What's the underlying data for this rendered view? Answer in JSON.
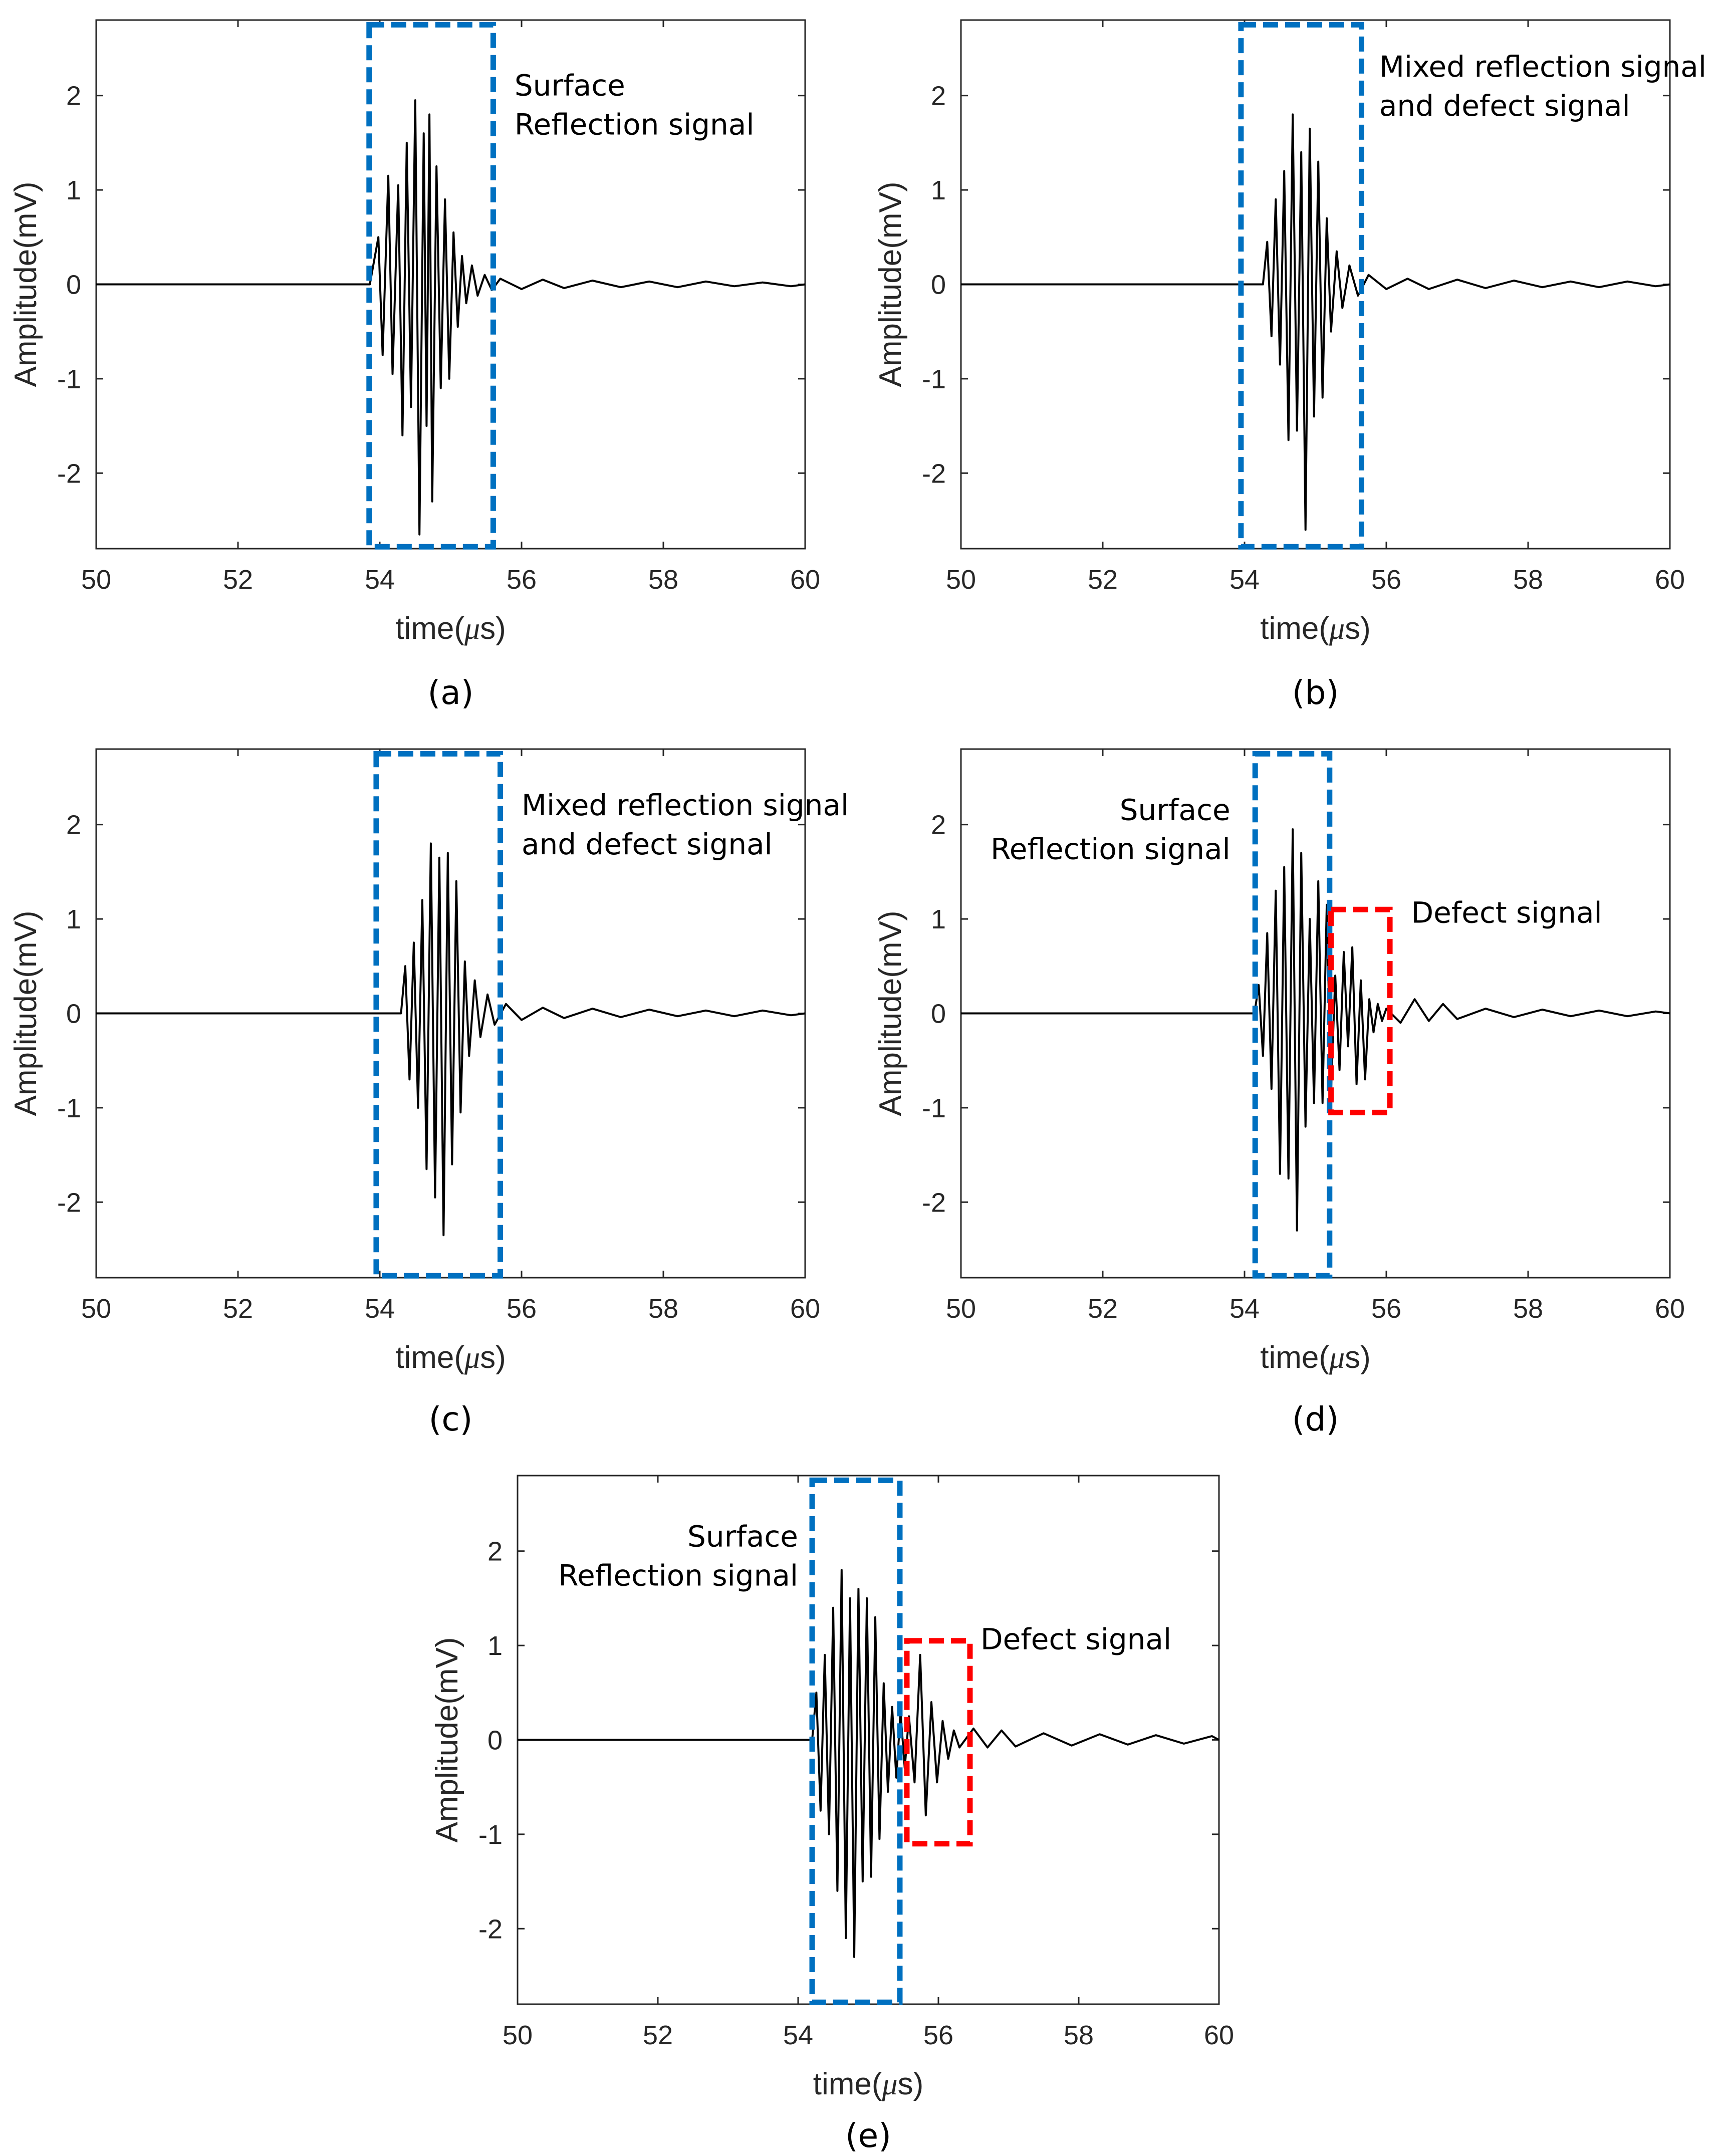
{
  "chart_data": [
    {
      "type": "line",
      "panel_label": "(a)",
      "xlabel_prefix": "time(",
      "xlabel_mu": "μ",
      "xlabel_suffix": "s)",
      "ylabel": "Amplitude(mV)",
      "xlim": [
        50,
        60
      ],
      "ylim": [
        -2.8,
        2.8
      ],
      "xticks": [
        "50",
        "52",
        "54",
        "56",
        "58",
        "60"
      ],
      "yticks": [
        "-2",
        "-1",
        "0",
        "1",
        "2"
      ],
      "series": [
        {
          "name": "signal",
          "x": [
            50,
            53.86,
            53.98,
            54.04,
            54.12,
            54.18,
            54.26,
            54.32,
            54.38,
            54.44,
            54.5,
            54.56,
            54.62,
            54.66,
            54.7,
            54.74,
            54.8,
            54.86,
            54.92,
            54.98,
            55.04,
            55.1,
            55.16,
            55.22,
            55.3,
            55.38,
            55.48,
            55.58,
            55.7,
            56.0,
            56.3,
            56.6,
            57.0,
            57.4,
            57.8,
            58.2,
            58.6,
            59.0,
            59.4,
            59.8,
            60
          ],
          "y": [
            0,
            0,
            0.5,
            -0.75,
            1.15,
            -0.95,
            1.05,
            -1.6,
            1.5,
            -1.3,
            1.95,
            -2.65,
            1.6,
            -1.5,
            1.8,
            -2.3,
            1.25,
            -1.1,
            0.9,
            -1.0,
            0.55,
            -0.45,
            0.3,
            -0.2,
            0.2,
            -0.12,
            0.1,
            -0.06,
            0.06,
            -0.05,
            0.05,
            -0.04,
            0.04,
            -0.03,
            0.03,
            -0.03,
            0.03,
            -0.02,
            0.02,
            -0.02,
            0
          ]
        }
      ],
      "annotations": [
        {
          "color": "#0070C0",
          "x0": 53.85,
          "x1": 55.6,
          "y0": -2.78,
          "y1": 2.75,
          "lines": [
            "Surface",
            "Reflection signal"
          ],
          "text_x": 55.9,
          "text_y": 2.0,
          "anchor": "start"
        }
      ]
    },
    {
      "type": "line",
      "panel_label": "(b)",
      "xlabel_prefix": "time(",
      "xlabel_mu": "μ",
      "xlabel_suffix": "s)",
      "ylabel": "Amplitude(mV)",
      "xlim": [
        50,
        60
      ],
      "ylim": [
        -2.8,
        2.8
      ],
      "xticks": [
        "50",
        "52",
        "54",
        "56",
        "58",
        "60"
      ],
      "yticks": [
        "-2",
        "-1",
        "0",
        "1",
        "2"
      ],
      "series": [
        {
          "name": "signal",
          "x": [
            50,
            54.26,
            54.32,
            54.38,
            54.44,
            54.5,
            54.56,
            54.62,
            54.68,
            54.74,
            54.8,
            54.86,
            54.92,
            54.98,
            55.04,
            55.1,
            55.16,
            55.22,
            55.3,
            55.38,
            55.48,
            55.6,
            55.75,
            56.0,
            56.3,
            56.6,
            57.0,
            57.4,
            57.8,
            58.2,
            58.6,
            59.0,
            59.4,
            59.8,
            60
          ],
          "y": [
            0,
            0,
            0.45,
            -0.55,
            0.9,
            -0.85,
            1.2,
            -1.65,
            1.8,
            -1.55,
            1.4,
            -2.6,
            1.65,
            -1.4,
            1.3,
            -1.2,
            0.7,
            -0.5,
            0.35,
            -0.25,
            0.2,
            -0.12,
            0.1,
            -0.05,
            0.06,
            -0.05,
            0.05,
            -0.04,
            0.04,
            -0.03,
            0.03,
            -0.03,
            0.03,
            -0.02,
            0
          ]
        }
      ],
      "annotations": [
        {
          "color": "#0070C0",
          "x0": 53.95,
          "x1": 55.65,
          "y0": -2.78,
          "y1": 2.75,
          "lines": [
            "Mixed reflection signal",
            "and defect signal"
          ],
          "text_x": 55.9,
          "text_y": 2.2,
          "anchor": "start"
        }
      ]
    },
    {
      "type": "line",
      "panel_label": "(c)",
      "xlabel_prefix": "time(",
      "xlabel_mu": "μ",
      "xlabel_suffix": "s)",
      "ylabel": "Amplitude(mV)",
      "xlim": [
        50,
        60
      ],
      "ylim": [
        -2.8,
        2.8
      ],
      "xticks": [
        "50",
        "52",
        "54",
        "56",
        "58",
        "60"
      ],
      "yticks": [
        "-2",
        "-1",
        "0",
        "1",
        "2"
      ],
      "series": [
        {
          "name": "signal",
          "x": [
            50,
            54.3,
            54.36,
            54.42,
            54.48,
            54.54,
            54.6,
            54.66,
            54.72,
            54.78,
            54.84,
            54.9,
            54.96,
            55.02,
            55.08,
            55.14,
            55.2,
            55.26,
            55.34,
            55.42,
            55.52,
            55.62,
            55.78,
            56.0,
            56.3,
            56.6,
            57.0,
            57.4,
            57.8,
            58.2,
            58.6,
            59.0,
            59.4,
            59.8,
            60
          ],
          "y": [
            0,
            0,
            0.5,
            -0.7,
            0.75,
            -1.0,
            1.2,
            -1.65,
            1.8,
            -1.95,
            1.65,
            -2.35,
            1.7,
            -1.6,
            1.4,
            -1.05,
            0.55,
            -0.45,
            0.35,
            -0.25,
            0.2,
            -0.12,
            0.1,
            -0.07,
            0.06,
            -0.05,
            0.05,
            -0.04,
            0.04,
            -0.03,
            0.03,
            -0.03,
            0.03,
            -0.02,
            0
          ]
        }
      ],
      "annotations": [
        {
          "color": "#0070C0",
          "x0": 53.95,
          "x1": 55.7,
          "y0": -2.78,
          "y1": 2.75,
          "lines": [
            "Mixed reflection signal",
            "and defect signal"
          ],
          "text_x": 56.0,
          "text_y": 2.1,
          "anchor": "start"
        }
      ]
    },
    {
      "type": "line",
      "panel_label": "(d)",
      "xlabel_prefix": "time(",
      "xlabel_mu": "μ",
      "xlabel_suffix": "s)",
      "ylabel": "Amplitude(mV)",
      "xlim": [
        50,
        60
      ],
      "ylim": [
        -2.8,
        2.8
      ],
      "xticks": [
        "50",
        "52",
        "54",
        "56",
        "58",
        "60"
      ],
      "yticks": [
        "-2",
        "-1",
        "0",
        "1",
        "2"
      ],
      "series": [
        {
          "name": "signal",
          "x": [
            50,
            54.14,
            54.2,
            54.26,
            54.32,
            54.38,
            54.44,
            54.5,
            54.56,
            54.62,
            54.68,
            54.74,
            54.8,
            54.86,
            54.92,
            54.98,
            55.04,
            55.1,
            55.16,
            55.22,
            55.28,
            55.34,
            55.4,
            55.46,
            55.52,
            55.58,
            55.64,
            55.7,
            55.76,
            55.82,
            55.88,
            55.94,
            56.0,
            56.2,
            56.4,
            56.6,
            56.8,
            57.0,
            57.4,
            57.8,
            58.2,
            58.6,
            59.0,
            59.4,
            59.8,
            60
          ],
          "y": [
            0,
            0,
            0.3,
            -0.45,
            0.85,
            -0.8,
            1.3,
            -1.7,
            1.55,
            -1.75,
            1.95,
            -2.3,
            1.7,
            -1.2,
            1.0,
            -0.95,
            1.4,
            -0.95,
            1.15,
            -0.85,
            0.4,
            -0.6,
            0.65,
            -0.35,
            0.7,
            -0.75,
            0.35,
            -0.7,
            0.15,
            -0.2,
            0.1,
            -0.08,
            0.05,
            -0.1,
            0.15,
            -0.08,
            0.1,
            -0.06,
            0.05,
            -0.04,
            0.04,
            -0.03,
            0.03,
            -0.03,
            0.02,
            0
          ]
        }
      ],
      "annotations": [
        {
          "color": "#0070C0",
          "x0": 54.15,
          "x1": 55.2,
          "y0": -2.78,
          "y1": 2.75,
          "lines": [
            "Surface",
            "Reflection signal"
          ],
          "text_x": 53.8,
          "text_y": 2.05,
          "anchor": "end"
        },
        {
          "color": "#FF0000",
          "x0": 55.22,
          "x1": 56.05,
          "y0": -1.05,
          "y1": 1.1,
          "lines": [
            "Defect signal"
          ],
          "text_x": 56.35,
          "text_y": 0.96,
          "anchor": "start"
        }
      ]
    },
    {
      "type": "line",
      "panel_label": "(e)",
      "xlabel_prefix": "time(",
      "xlabel_mu": "μ",
      "xlabel_suffix": "s)",
      "ylabel": "Amplitude(mV)",
      "xlim": [
        50,
        60
      ],
      "ylim": [
        -2.8,
        2.8
      ],
      "xticks": [
        "50",
        "52",
        "54",
        "56",
        "58",
        "60"
      ],
      "yticks": [
        "-2",
        "-1",
        "0",
        "1",
        "2"
      ],
      "series": [
        {
          "name": "signal",
          "x": [
            50,
            54.2,
            54.26,
            54.32,
            54.38,
            54.44,
            54.5,
            54.56,
            54.62,
            54.68,
            54.74,
            54.8,
            54.86,
            54.92,
            54.98,
            55.04,
            55.1,
            55.16,
            55.22,
            55.28,
            55.34,
            55.4,
            55.46,
            55.52,
            55.58,
            55.66,
            55.74,
            55.82,
            55.9,
            55.98,
            56.06,
            56.14,
            56.22,
            56.3,
            56.5,
            56.7,
            56.9,
            57.1,
            57.5,
            57.9,
            58.3,
            58.7,
            59.1,
            59.5,
            59.9,
            60
          ],
          "y": [
            0,
            0,
            0.5,
            -0.75,
            0.9,
            -1.0,
            1.4,
            -1.6,
            1.8,
            -2.1,
            1.5,
            -2.3,
            1.6,
            -1.5,
            1.5,
            -1.45,
            1.3,
            -1.05,
            0.6,
            -0.55,
            0.35,
            -0.4,
            0.3,
            -0.3,
            0.25,
            -0.45,
            0.9,
            -0.8,
            0.4,
            -0.45,
            0.2,
            -0.2,
            0.1,
            -0.08,
            0.12,
            -0.08,
            0.1,
            -0.07,
            0.07,
            -0.06,
            0.06,
            -0.05,
            0.05,
            -0.04,
            0.04,
            0
          ]
        }
      ],
      "annotations": [
        {
          "color": "#0070C0",
          "x0": 54.2,
          "x1": 55.45,
          "y0": -2.78,
          "y1": 2.75,
          "lines": [
            "Surface",
            "Reflection signal"
          ],
          "text_x": 54.0,
          "text_y": 2.05,
          "anchor": "end"
        },
        {
          "color": "#FF0000",
          "x0": 55.55,
          "x1": 56.45,
          "y0": -1.1,
          "y1": 1.05,
          "lines": [
            "Defect signal"
          ],
          "text_x": 56.6,
          "text_y": 0.96,
          "anchor": "start"
        }
      ]
    }
  ]
}
